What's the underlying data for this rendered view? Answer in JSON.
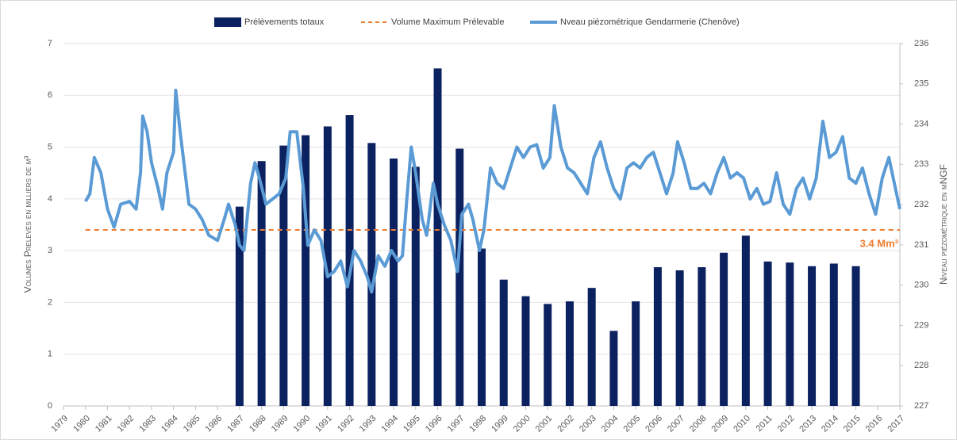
{
  "chart_data": {
    "type": "combo",
    "series": [
      {
        "name": "Prélèvements totaux",
        "type": "bar",
        "color": "#0c2260",
        "x": [
          1987,
          1988,
          1989,
          1990,
          1991,
          1992,
          1993,
          1994,
          1995,
          1996,
          1997,
          1998,
          1999,
          2000,
          2001,
          2002,
          2003,
          2004,
          2005,
          2006,
          2007,
          2008,
          2009,
          2010,
          2011,
          2012,
          2013,
          2014,
          2015
        ],
        "values": [
          3.85,
          4.73,
          5.03,
          5.23,
          5.4,
          5.62,
          5.08,
          4.78,
          4.62,
          6.52,
          4.97,
          3.04,
          2.44,
          2.12,
          1.97,
          2.02,
          2.28,
          1.45,
          2.02,
          2.68,
          2.62,
          2.68,
          2.96,
          3.29,
          2.79,
          2.77,
          2.7,
          2.75,
          2.7
        ]
      },
      {
        "name": "Volume Maximum Prélevable",
        "type": "dashed-line",
        "color": "#ed7d31",
        "x": [
          1980,
          2017
        ],
        "values": [
          3.4,
          3.4
        ]
      },
      {
        "name": "Nveau piézométrique Gendarmerie (Chenôve)",
        "type": "line",
        "color": "#5b9bd5",
        "axis": "y2",
        "x": [
          1980.0,
          1980.2,
          1980.4,
          1980.7,
          1981.0,
          1981.3,
          1981.6,
          1982.0,
          1982.3,
          1982.5,
          1982.6,
          1982.8,
          1983.0,
          1983.3,
          1983.5,
          1983.7,
          1984.0,
          1984.1,
          1984.3,
          1984.5,
          1984.7,
          1985.0,
          1985.3,
          1985.6,
          1986.0,
          1986.3,
          1986.5,
          1986.8,
          1987.0,
          1987.2,
          1987.5,
          1987.7,
          1987.9,
          1988.2,
          1988.5,
          1988.8,
          1989.1,
          1989.3,
          1989.6,
          1989.9,
          1990.1,
          1990.4,
          1990.7,
          1991.0,
          1991.3,
          1991.6,
          1991.9,
          1992.2,
          1992.5,
          1992.8,
          1993.0,
          1993.3,
          1993.6,
          1993.9,
          1994.2,
          1994.4,
          1994.6,
          1994.8,
          1995.0,
          1995.3,
          1995.5,
          1995.8,
          1996.0,
          1996.3,
          1996.6,
          1996.9,
          1997.1,
          1997.4,
          1997.6,
          1997.9,
          1998.1,
          1998.4,
          1998.7,
          1999.0,
          1999.3,
          1999.6,
          1999.9,
          2000.2,
          2000.5,
          2000.8,
          2001.1,
          2001.3,
          2001.6,
          2001.9,
          2002.2,
          2002.5,
          2002.8,
          2003.1,
          2003.4,
          2003.7,
          2004.0,
          2004.3,
          2004.6,
          2004.9,
          2005.2,
          2005.5,
          2005.8,
          2006.1,
          2006.4,
          2006.7,
          2006.9,
          2007.2,
          2007.5,
          2007.8,
          2008.1,
          2008.4,
          2008.7,
          2009.0,
          2009.3,
          2009.6,
          2009.9,
          2010.2,
          2010.5,
          2010.8,
          2011.1,
          2011.4,
          2011.7,
          2012.0,
          2012.3,
          2012.6,
          2012.9,
          2013.2,
          2013.5,
          2013.8,
          2014.1,
          2014.4,
          2014.7,
          2015.0,
          2015.3,
          2015.6,
          2015.9,
          2016.2,
          2016.5,
          2016.8,
          2017.0
        ],
        "values": [
          232.08,
          232.27,
          233.17,
          232.79,
          231.89,
          231.44,
          232.01,
          232.08,
          231.89,
          232.79,
          234.2,
          233.81,
          233.04,
          232.4,
          231.89,
          232.79,
          233.3,
          234.84,
          233.81,
          232.91,
          232.01,
          231.89,
          231.63,
          231.24,
          231.11,
          231.63,
          232.01,
          231.5,
          230.99,
          230.86,
          232.53,
          233.04,
          232.66,
          232.01,
          232.14,
          232.27,
          232.66,
          233.81,
          233.81,
          232.4,
          230.99,
          231.37,
          231.11,
          230.21,
          230.34,
          230.6,
          229.96,
          230.86,
          230.6,
          230.21,
          229.83,
          230.73,
          230.47,
          230.86,
          230.6,
          230.73,
          232.14,
          233.43,
          232.79,
          231.63,
          231.24,
          232.53,
          232.01,
          231.5,
          231.11,
          230.34,
          231.76,
          232.01,
          231.63,
          230.86,
          231.37,
          232.91,
          232.53,
          232.4,
          232.91,
          233.43,
          233.17,
          233.43,
          233.49,
          232.91,
          233.17,
          234.46,
          233.43,
          232.91,
          232.79,
          232.53,
          232.27,
          233.17,
          233.56,
          232.91,
          232.4,
          232.14,
          232.91,
          233.04,
          232.91,
          233.17,
          233.3,
          232.79,
          232.27,
          232.79,
          233.56,
          233.04,
          232.4,
          232.4,
          232.53,
          232.27,
          232.79,
          233.17,
          232.66,
          232.79,
          232.66,
          232.14,
          232.4,
          232.01,
          232.08,
          232.79,
          232.01,
          231.76,
          232.4,
          232.66,
          232.14,
          232.66,
          234.07,
          233.17,
          233.3,
          233.69,
          232.66,
          232.53,
          232.91,
          232.27,
          231.76,
          232.66,
          233.17,
          232.4,
          231.89
        ]
      }
    ],
    "ylabel": "Volumes Prelevés  en milliers de m³",
    "y2label": "Niveau piézométrique en mNGF",
    "annotation": "3.4 Mm³",
    "xlim": [
      1979,
      2017
    ],
    "xticks": [
      1979,
      1980,
      1981,
      1982,
      1983,
      1984,
      1985,
      1986,
      1987,
      1988,
      1989,
      1990,
      1991,
      1992,
      1993,
      1994,
      1995,
      1996,
      1997,
      1998,
      1999,
      2000,
      2001,
      2002,
      2003,
      2004,
      2005,
      2006,
      2007,
      2008,
      2009,
      2010,
      2011,
      2012,
      2013,
      2014,
      2015,
      2016,
      2017
    ],
    "ylim": [
      0,
      7
    ],
    "yticks": [
      0,
      1,
      2,
      3,
      4,
      5,
      6,
      7
    ],
    "y2lim": [
      227,
      236
    ],
    "y2ticks": [
      227,
      228,
      229,
      230,
      231,
      232,
      233,
      234,
      235,
      236
    ],
    "grid": true,
    "legend": "top"
  }
}
